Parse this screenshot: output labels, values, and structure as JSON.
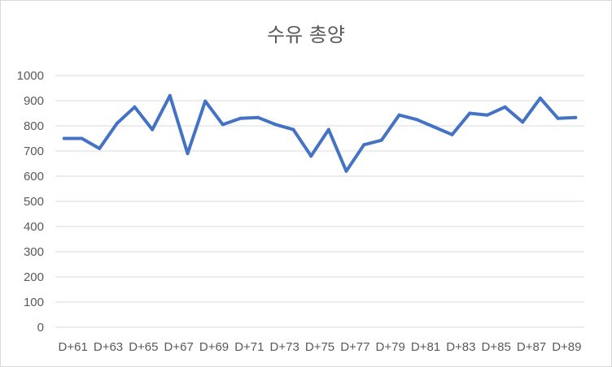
{
  "chart_data": {
    "type": "line",
    "title": "수유 총양",
    "xlabel": "",
    "ylabel": "",
    "ylim": [
      0,
      1000
    ],
    "yticks": [
      0,
      100,
      200,
      300,
      400,
      500,
      600,
      700,
      800,
      900,
      1000
    ],
    "grid": true,
    "legend": "none",
    "line_color": "#4472c4",
    "x": [
      "D+61",
      "D+62",
      "D+63",
      "D+64",
      "D+65",
      "D+66",
      "D+67",
      "D+68",
      "D+69",
      "D+70",
      "D+71",
      "D+72",
      "D+73",
      "D+74",
      "D+75",
      "D+76",
      "D+77",
      "D+78",
      "D+79",
      "D+80",
      "D+81",
      "D+82",
      "D+83",
      "D+84",
      "D+85",
      "D+86",
      "D+87",
      "D+88",
      "D+89",
      "D+90"
    ],
    "x_tick_labels": [
      "D+61",
      "D+63",
      "D+65",
      "D+67",
      "D+69",
      "D+71",
      "D+73",
      "D+75",
      "D+77",
      "D+79",
      "D+81",
      "D+83",
      "D+85",
      "D+87",
      "D+89"
    ],
    "series": [
      {
        "values": [
          750,
          750,
          710,
          810,
          875,
          785,
          920,
          690,
          898,
          805,
          830,
          833,
          805,
          785,
          680,
          785,
          620,
          725,
          743,
          843,
          825,
          795,
          765,
          850,
          843,
          875,
          815,
          910,
          830,
          833
        ]
      }
    ]
  }
}
